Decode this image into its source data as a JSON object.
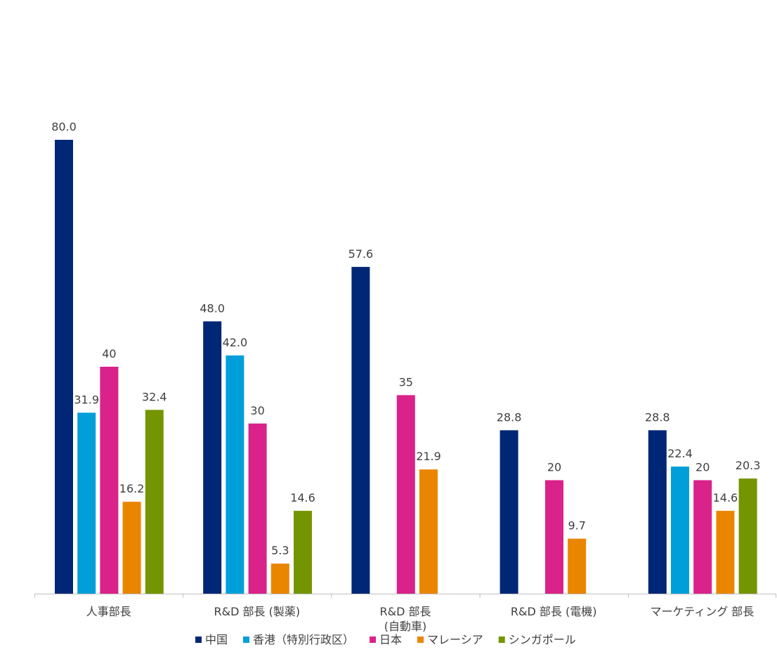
{
  "chart_data": {
    "type": "bar",
    "categories": [
      [
        "人事部長"
      ],
      [
        "R&D 部長 (製薬)"
      ],
      [
        "R&D 部長",
        "(自動車)"
      ],
      [
        "R&D 部長 (電機)"
      ],
      [
        "マーケティング 部長"
      ]
    ],
    "series": [
      {
        "name": "中国",
        "color": "#002776",
        "values": [
          80.0,
          48.0,
          57.6,
          28.8,
          28.8
        ],
        "labels": [
          "80.0",
          "48.0",
          "57.6",
          "28.8",
          "28.8"
        ]
      },
      {
        "name": "香港（特別行政区）",
        "color": "#009fda",
        "values": [
          31.9,
          42.0,
          null,
          null,
          22.4
        ],
        "labels": [
          "31.9",
          "42.0",
          null,
          null,
          "22.4"
        ]
      },
      {
        "name": "日本",
        "color": "#d9228a",
        "values": [
          40,
          30,
          35,
          20,
          20
        ],
        "labels": [
          "40",
          "30",
          "35",
          "20",
          "20"
        ]
      },
      {
        "name": "マレーシア",
        "color": "#ea8500",
        "values": [
          16.2,
          5.3,
          21.9,
          9.7,
          14.6
        ],
        "labels": [
          "16.2",
          "5.3",
          "21.9",
          "9.7",
          "14.6"
        ]
      },
      {
        "name": "シンガポール",
        "color": "#739500",
        "values": [
          32.4,
          14.6,
          null,
          null,
          20.3
        ],
        "labels": [
          "32.4",
          "14.6",
          null,
          null,
          "20.3"
        ]
      }
    ],
    "ylim": [
      0,
      80
    ],
    "grid": false,
    "legend": "bottom",
    "axis_color": "#bfbfbf"
  }
}
